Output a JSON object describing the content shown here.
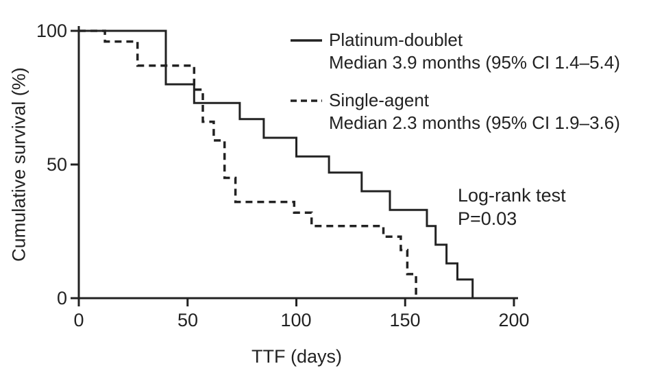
{
  "chart_data": {
    "type": "line",
    "subtype": "kaplan-meier-step",
    "title": "",
    "xlabel": "TTF (days)",
    "ylabel": "Cumulative survival (%)",
    "xlim": [
      0,
      200
    ],
    "ylim": [
      0,
      100
    ],
    "xticks": [
      0,
      50,
      100,
      150,
      200
    ],
    "yticks": [
      0,
      50,
      100
    ],
    "grid": false,
    "legend_position": "top-right-inside",
    "axis_color": "#222222",
    "annotation": {
      "line1": "Log-rank test",
      "line2": "P=0.03"
    },
    "series": [
      {
        "name": "Platinum-doublet",
        "median_label": "Median 3.9 months (95% CI 1.4–5.4)",
        "line_style": "solid",
        "color": "#222222",
        "points": [
          [
            0,
            100
          ],
          [
            40,
            80
          ],
          [
            53,
            73
          ],
          [
            74,
            67
          ],
          [
            85,
            60
          ],
          [
            100,
            53
          ],
          [
            115,
            47
          ],
          [
            130,
            40
          ],
          [
            143,
            33
          ],
          [
            160,
            27
          ],
          [
            164,
            20
          ],
          [
            169,
            13
          ],
          [
            174,
            7
          ],
          [
            181,
            0
          ]
        ]
      },
      {
        "name": "Single-agent",
        "median_label": "Median 2.3 months (95% CI 1.9–3.6)",
        "line_style": "dashed",
        "color": "#222222",
        "points": [
          [
            0,
            100
          ],
          [
            12,
            96
          ],
          [
            27,
            87
          ],
          [
            53,
            78
          ],
          [
            57,
            66
          ],
          [
            62,
            59
          ],
          [
            67,
            45
          ],
          [
            72,
            36
          ],
          [
            99,
            32
          ],
          [
            107,
            27
          ],
          [
            140,
            23
          ],
          [
            148,
            18
          ],
          [
            151,
            9
          ],
          [
            155,
            0
          ]
        ]
      }
    ]
  }
}
